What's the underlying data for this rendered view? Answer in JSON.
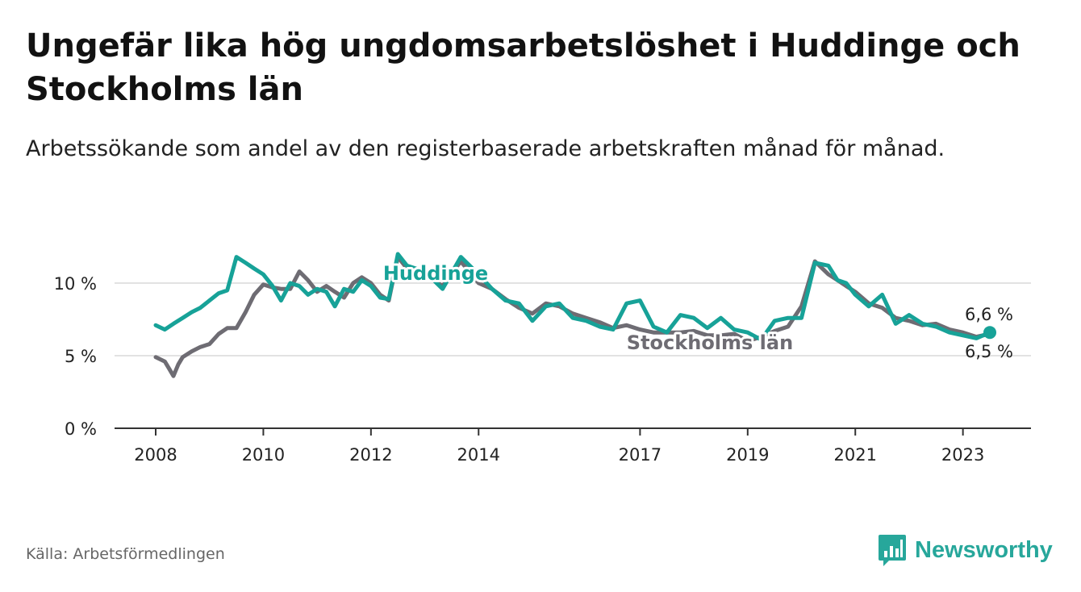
{
  "title": "Ungefär lika hög ungdomsarbetslöshet i Huddinge och Stockholms län",
  "subtitle": "Arbetssökande som andel av den registerbaserade arbetskraften månad för månad.",
  "source": "Källa: Arbetsförmedlingen",
  "brand": {
    "name": "Newsworthy",
    "icon": "bar-chart-logo-icon",
    "color": "#27a79b"
  },
  "chart_data": {
    "type": "line",
    "title": "Ungefär lika hög ungdomsarbetslöshet i Huddinge och Stockholms län",
    "xlabel": "",
    "ylabel": "",
    "xlim": [
      2008.0,
      2024.2
    ],
    "ylim": [
      0,
      12
    ],
    "grid": true,
    "y_ticks": [
      {
        "value": 0,
        "label": "0 %"
      },
      {
        "value": 5,
        "label": "5 %"
      },
      {
        "value": 10,
        "label": "10 %"
      }
    ],
    "x_ticks": [
      {
        "value": 2008,
        "label": "2008"
      },
      {
        "value": 2010,
        "label": "2010"
      },
      {
        "value": 2012,
        "label": "2012"
      },
      {
        "value": 2014,
        "label": "2014"
      },
      {
        "value": 2017,
        "label": "2017"
      },
      {
        "value": 2019,
        "label": "2019"
      },
      {
        "value": 2021,
        "label": "2021"
      },
      {
        "value": 2023,
        "label": "2023"
      }
    ],
    "series": [
      {
        "name": "Stockholms län",
        "color": "#6e6c73",
        "x": [
          2008.0,
          2008.17,
          2008.25,
          2008.33,
          2008.42,
          2008.5,
          2008.67,
          2008.83,
          2009.0,
          2009.17,
          2009.33,
          2009.5,
          2009.67,
          2009.83,
          2010.0,
          2010.17,
          2010.33,
          2010.5,
          2010.67,
          2010.83,
          2011.0,
          2011.17,
          2011.33,
          2011.5,
          2011.67,
          2011.83,
          2012.0,
          2012.17,
          2012.33,
          2012.5,
          2012.67,
          2013.0,
          2013.33,
          2013.67,
          2014.0,
          2014.25,
          2014.5,
          2014.75,
          2015.0,
          2015.25,
          2015.5,
          2015.75,
          2016.0,
          2016.25,
          2016.5,
          2016.75,
          2017.0,
          2017.25,
          2017.5,
          2017.75,
          2018.0,
          2018.25,
          2018.5,
          2018.75,
          2019.0,
          2019.25,
          2019.5,
          2019.75,
          2020.0,
          2020.25,
          2020.5,
          2020.67,
          2020.83,
          2021.0,
          2021.25,
          2021.5,
          2021.75,
          2022.0,
          2022.25,
          2022.5,
          2022.75,
          2023.0,
          2023.25,
          2023.5
        ],
        "values": [
          4.9,
          4.6,
          4.1,
          3.6,
          4.4,
          4.9,
          5.3,
          5.6,
          5.8,
          6.5,
          6.9,
          6.9,
          8.0,
          9.2,
          9.9,
          9.7,
          9.6,
          9.6,
          10.8,
          10.2,
          9.4,
          9.8,
          9.4,
          9.0,
          10.0,
          10.4,
          10.0,
          9.2,
          8.8,
          11.8,
          11.0,
          10.6,
          9.8,
          11.5,
          10.0,
          9.6,
          8.9,
          8.3,
          7.9,
          8.6,
          8.4,
          7.9,
          7.6,
          7.3,
          6.9,
          7.1,
          6.8,
          6.6,
          6.6,
          6.6,
          6.7,
          6.4,
          6.4,
          6.5,
          6.0,
          6.3,
          6.7,
          7.0,
          8.4,
          11.5,
          10.6,
          10.2,
          9.8,
          9.4,
          8.6,
          8.3,
          7.6,
          7.4,
          7.1,
          7.2,
          6.8,
          6.6,
          6.3,
          6.5
        ],
        "last_value_label": "6,5 %"
      },
      {
        "name": "Huddinge",
        "color": "#17a298",
        "x": [
          2008.0,
          2008.17,
          2008.33,
          2008.5,
          2008.67,
          2008.83,
          2009.0,
          2009.17,
          2009.33,
          2009.5,
          2009.67,
          2009.83,
          2010.0,
          2010.17,
          2010.33,
          2010.5,
          2010.67,
          2010.83,
          2011.0,
          2011.17,
          2011.33,
          2011.5,
          2011.67,
          2011.83,
          2012.0,
          2012.17,
          2012.33,
          2012.5,
          2012.67,
          2013.0,
          2013.33,
          2013.67,
          2014.0,
          2014.25,
          2014.5,
          2014.75,
          2015.0,
          2015.25,
          2015.5,
          2015.75,
          2016.0,
          2016.25,
          2016.5,
          2016.75,
          2017.0,
          2017.25,
          2017.5,
          2017.75,
          2018.0,
          2018.25,
          2018.5,
          2018.75,
          2019.0,
          2019.25,
          2019.5,
          2019.75,
          2020.0,
          2020.25,
          2020.5,
          2020.67,
          2020.83,
          2021.0,
          2021.25,
          2021.5,
          2021.75,
          2022.0,
          2022.25,
          2022.5,
          2022.75,
          2023.0,
          2023.25,
          2023.5
        ],
        "values": [
          7.1,
          6.8,
          7.2,
          7.6,
          8.0,
          8.3,
          8.8,
          9.3,
          9.5,
          11.8,
          11.4,
          11.0,
          10.6,
          9.8,
          8.8,
          10.0,
          9.8,
          9.2,
          9.6,
          9.4,
          8.4,
          9.6,
          9.4,
          10.2,
          9.8,
          9.0,
          8.9,
          12.0,
          11.2,
          10.8,
          9.6,
          11.8,
          10.6,
          9.6,
          8.8,
          8.6,
          7.4,
          8.4,
          8.6,
          7.6,
          7.4,
          7.0,
          6.8,
          8.6,
          8.8,
          7.0,
          6.6,
          7.8,
          7.6,
          6.9,
          7.6,
          6.8,
          6.6,
          6.1,
          7.4,
          7.6,
          7.6,
          11.4,
          11.2,
          10.2,
          10.0,
          9.2,
          8.4,
          9.2,
          7.2,
          7.8,
          7.2,
          7.0,
          6.6,
          6.4,
          6.2,
          6.6
        ],
        "last_value_label": "6,6 %"
      }
    ]
  }
}
